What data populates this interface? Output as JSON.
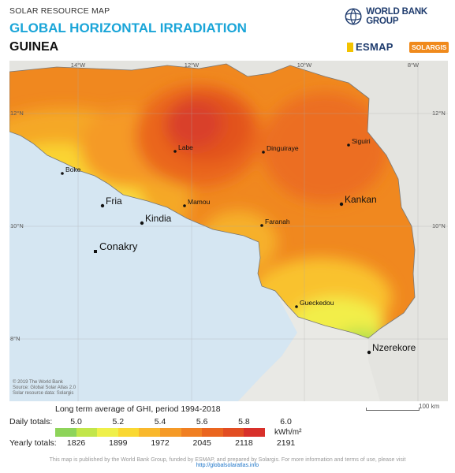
{
  "header": {
    "small_title": "SOLAR RESOURCE MAP",
    "title": "GLOBAL HORIZONTAL IRRADIATION",
    "country": "GUINEA"
  },
  "logos": {
    "world_bank": "WORLD BANK GROUP",
    "esmap": "ESMAP",
    "solargis": "SOLARGIS"
  },
  "map": {
    "graticule_labels": {
      "lon": [
        "14°W",
        "12°W",
        "10°W",
        "8°W"
      ],
      "lat": [
        "12°N",
        "10°N",
        "8°N"
      ]
    },
    "cities": [
      {
        "name": "Labe",
        "size": "small"
      },
      {
        "name": "Dinguiraye",
        "size": "small"
      },
      {
        "name": "Siguiri",
        "size": "small"
      },
      {
        "name": "Boke",
        "size": "small"
      },
      {
        "name": "Fria",
        "size": "large"
      },
      {
        "name": "Mamou",
        "size": "small"
      },
      {
        "name": "Kankan",
        "size": "large"
      },
      {
        "name": "Kindia",
        "size": "large"
      },
      {
        "name": "Faranah",
        "size": "small"
      },
      {
        "name": "Conakry",
        "size": "large"
      },
      {
        "name": "Gueckedou",
        "size": "small"
      },
      {
        "name": "Nzerekore",
        "size": "large"
      }
    ],
    "credits": [
      "© 2019 The World Bank",
      "Source: Global Solar Atlas 2.0",
      "Solar resource data: Solargis"
    ],
    "scale_label": "100 km"
  },
  "legend": {
    "subtitle": "Long term average of GHI, period 1994-2018",
    "daily_label": "Daily totals:",
    "yearly_label": "Yearly totals:",
    "daily_ticks": [
      "5.0",
      "5.2",
      "5.4",
      "5.6",
      "5.8",
      "6.0"
    ],
    "yearly_ticks": [
      "1826",
      "1899",
      "1972",
      "2045",
      "2118",
      "2191"
    ],
    "unit": "kWh/m²",
    "colors": [
      "#8ed45a",
      "#c2e64a",
      "#eff04a",
      "#fad832",
      "#f9b82c",
      "#f59a27",
      "#f07f22",
      "#ea651f",
      "#e24d22",
      "#d8302a"
    ]
  },
  "footer": {
    "text": "This map is published by the World Bank Group, funded by ESMAP, and prepared by Solargis. For more information and terms of use, please visit",
    "link": "http://globalsolaratlas.info"
  }
}
